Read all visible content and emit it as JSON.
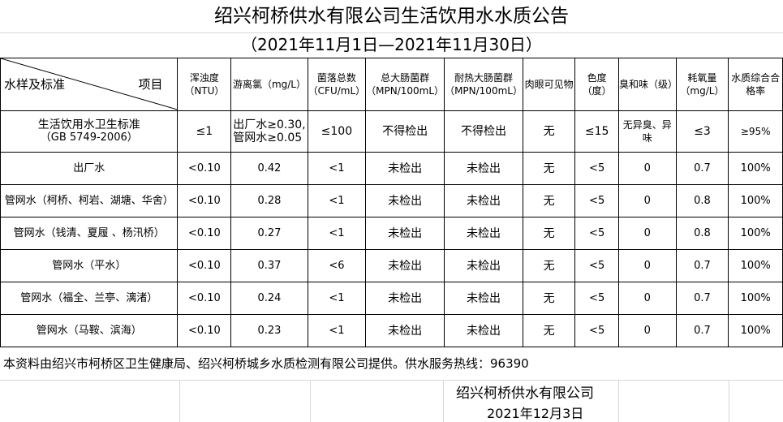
{
  "title": "绍兴柯桥供水有限公司生活饮用水水质公告",
  "subtitle": "（2021年11月1日—2021年11月30日）",
  "header": {
    "corner_left": "水样及标准",
    "corner_right": "项目",
    "columns": [
      "浑浊度（NTU）",
      "游离氯（mg/L）",
      "菌落总数（CFU/mL）",
      "总大肠菌群（MPN/100mL）",
      "耐热大肠菌群（MPN/100mL）",
      "肉眼可见物",
      "色度（度）",
      "臭和味（级）",
      "耗氧量（mg/L）",
      "水质综合合格率"
    ]
  },
  "standard": {
    "name": "生活饮用水卫生标准",
    "code": "（GB 5749-2006）",
    "values": [
      "≤1",
      "出厂水≥0.30,\n管网水≥0.05",
      "≤100",
      "不得检出",
      "不得检出",
      "无",
      "≤15",
      "无异臭、异味",
      "≤3",
      "≥95%"
    ]
  },
  "rows": [
    {
      "name": "出厂水",
      "values": [
        "<0.10",
        "0.42",
        "<1",
        "未检出",
        "未检出",
        "无",
        "<5",
        "0",
        "0.7",
        "100%"
      ]
    },
    {
      "name": "管网水（柯桥、柯岩、湖塘、华舍）",
      "values": [
        "<0.10",
        "0.28",
        "<1",
        "未检出",
        "未检出",
        "无",
        "<5",
        "0",
        "0.8",
        "100%"
      ]
    },
    {
      "name": "管网水（钱清、夏履 、杨汛桥）",
      "values": [
        "<0.10",
        "0.27",
        "<1",
        "未检出",
        "未检出",
        "无",
        "<5",
        "0",
        "0.8",
        "100%"
      ]
    },
    {
      "name": "管网水（平水）",
      "values": [
        "<0.10",
        "0.37",
        "<6",
        "未检出",
        "未检出",
        "无",
        "<5",
        "0",
        "0.7",
        "100%"
      ]
    },
    {
      "name": "管网水（福全、兰亭、漓渚）",
      "values": [
        "<0.10",
        "0.24",
        "<1",
        "未检出",
        "未检出",
        "无",
        "<5",
        "0",
        "0.7",
        "100%"
      ]
    },
    {
      "name": "管网水（马鞍、滨海）",
      "values": [
        "<0.10",
        "0.23",
        "<1",
        "未检出",
        "未检出",
        "无",
        "<5",
        "0",
        "0.7",
        "100%"
      ]
    }
  ],
  "footnote": "本资料由绍兴市柯桥区卫生健康局、绍兴柯桥城乡水质检测有限公司提供。供水服务热线：96390",
  "company": "绍兴柯桥供水有限公司",
  "date": "2021年12月3日"
}
